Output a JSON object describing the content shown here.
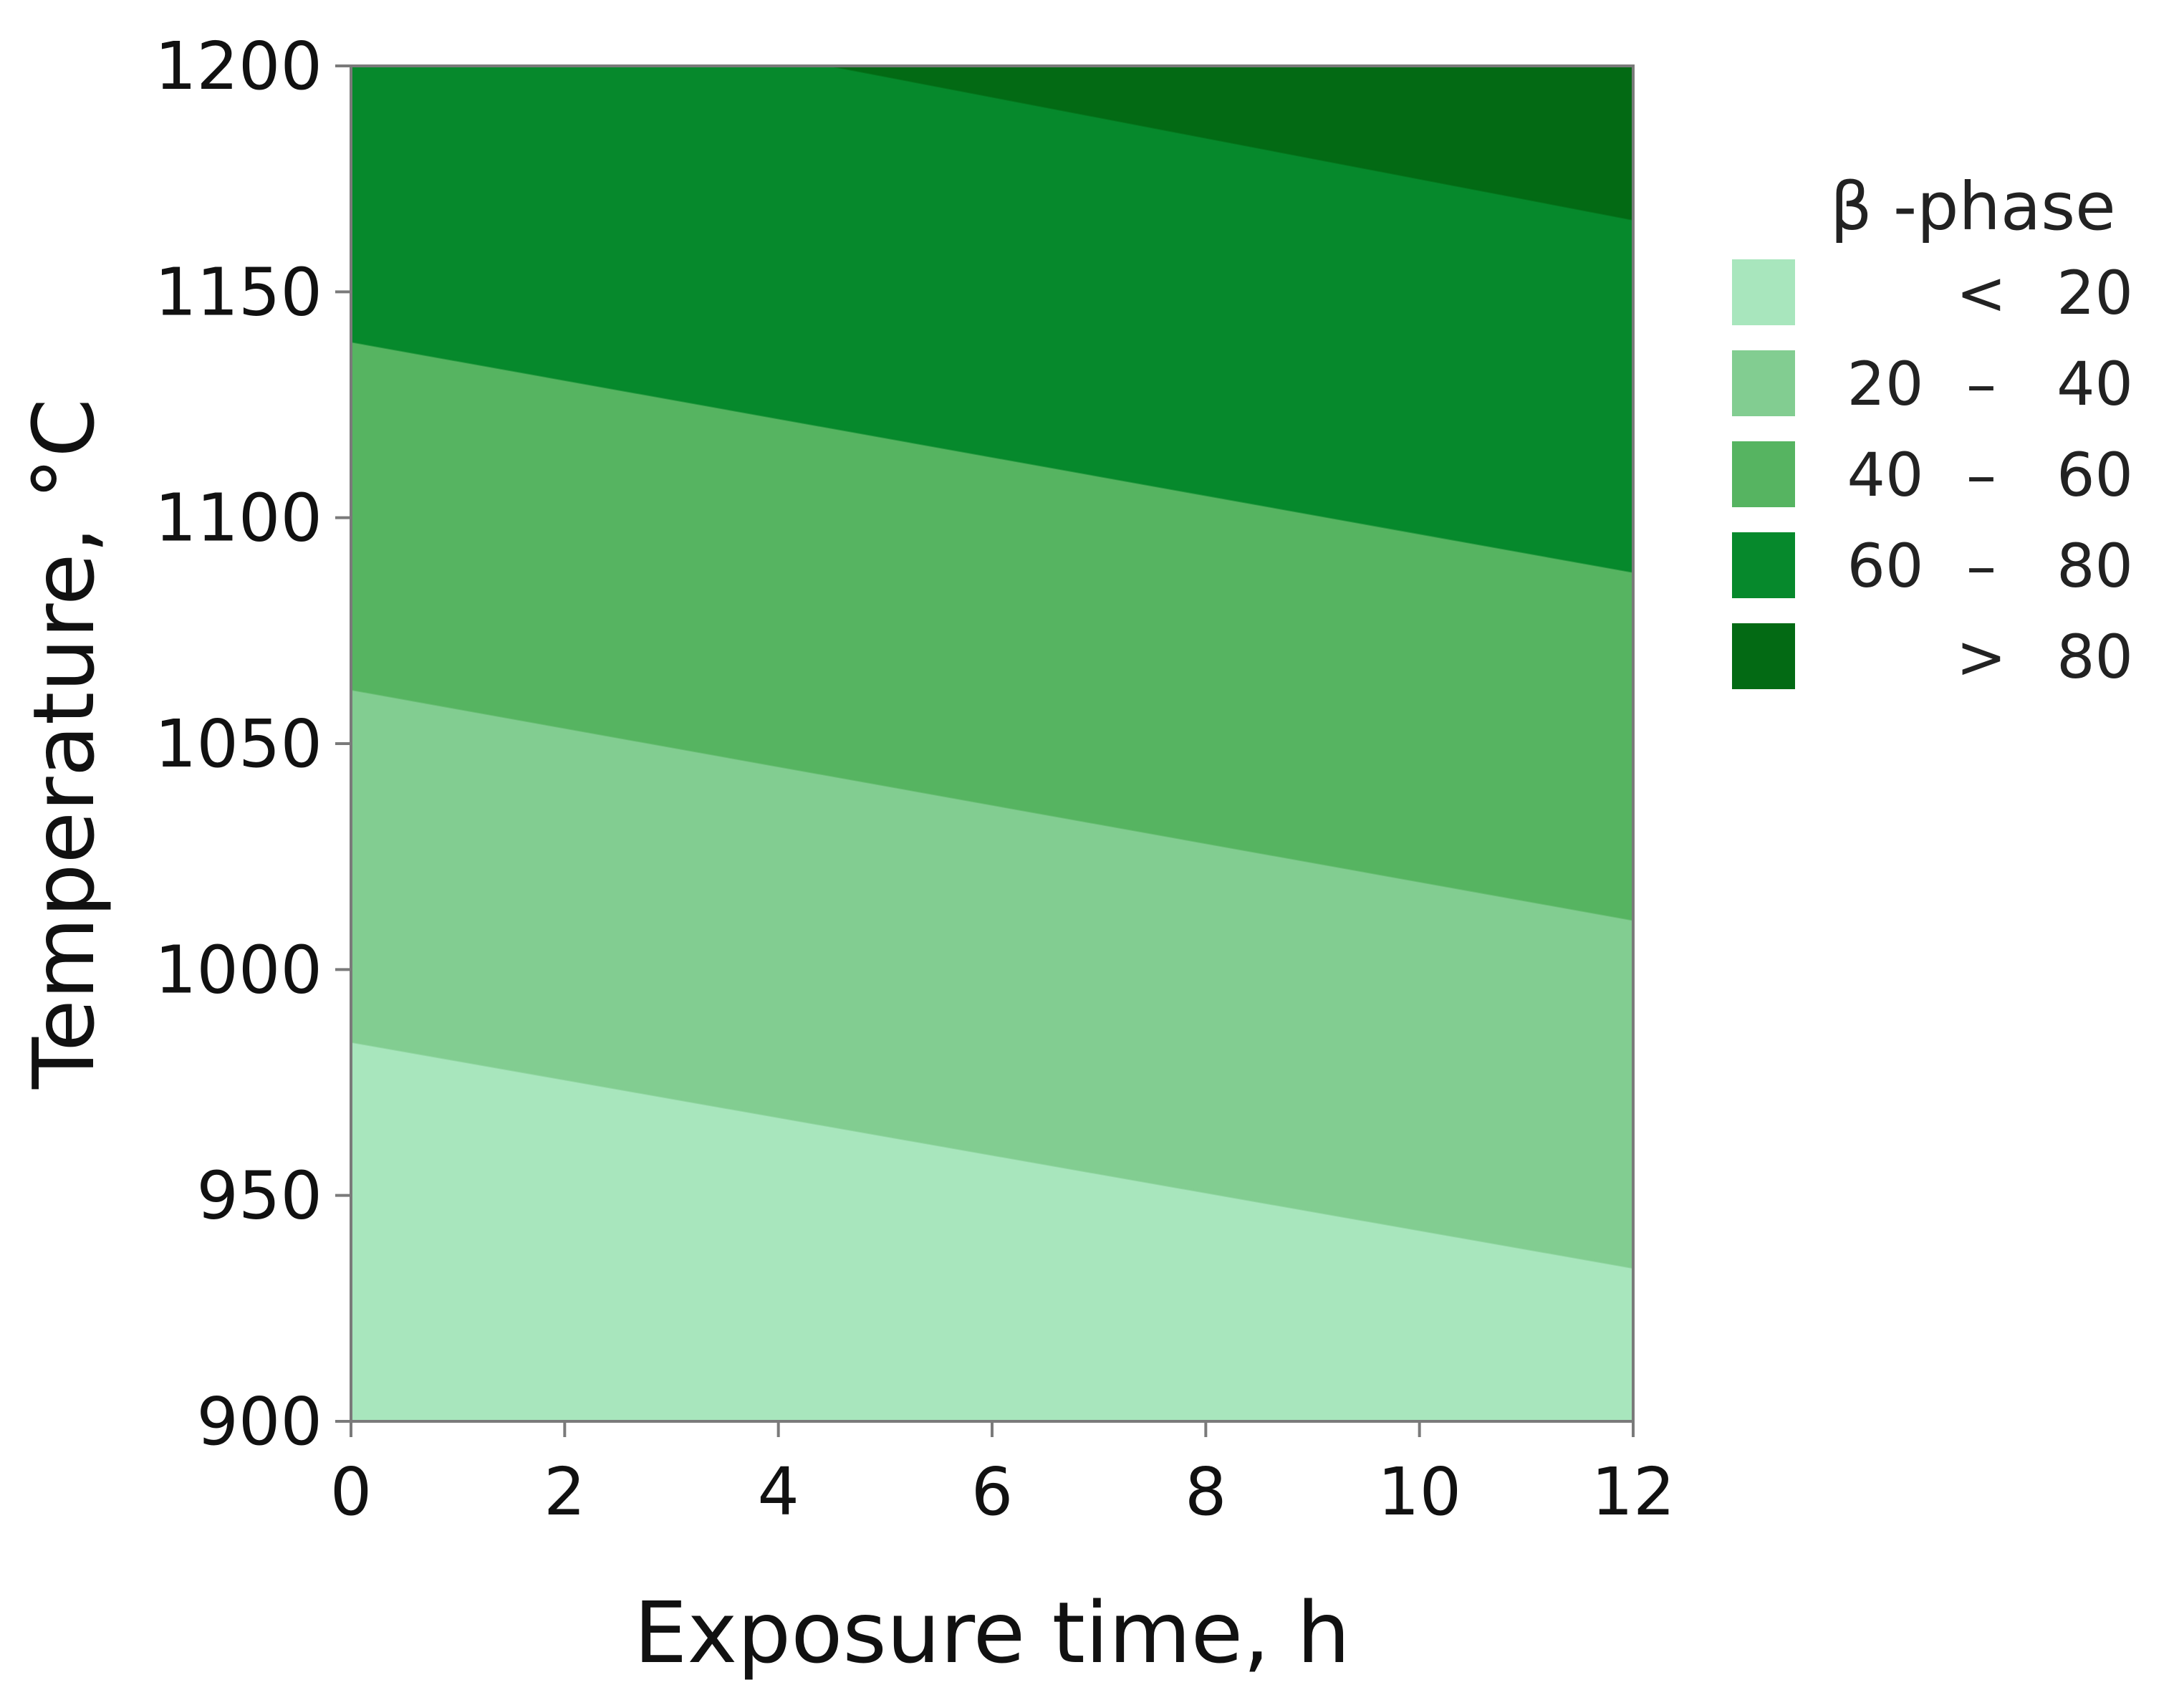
{
  "chart_data": {
    "type": "contour",
    "xlabel": "Exposure time, h",
    "ylabel": "Temperature, °C",
    "xlim": [
      0,
      12
    ],
    "ylim": [
      900,
      1200
    ],
    "x_ticks": [
      0,
      2,
      4,
      6,
      8,
      10,
      12
    ],
    "y_ticks": [
      900,
      950,
      1000,
      1050,
      1100,
      1150,
      1200
    ],
    "grid": false,
    "legend": {
      "title": "β -phase",
      "placement": "right",
      "entries": [
        {
          "low": "",
          "sep": "<",
          "high": "20",
          "color": "#a8e6bd"
        },
        {
          "low": "20",
          "sep": "–",
          "high": "40",
          "color": "#82cd91"
        },
        {
          "low": "40",
          "sep": "–",
          "high": "60",
          "color": "#56b461"
        },
        {
          "low": "60",
          "sep": "–",
          "high": "80",
          "color": "#06892c"
        },
        {
          "low": "",
          "sep": ">",
          "high": "80",
          "color": "#036a14"
        }
      ]
    },
    "contour_lines": [
      {
        "level": 20,
        "x": [
          0,
          12
        ],
        "y": [
          984,
          934
        ]
      },
      {
        "level": 40,
        "x": [
          0,
          12
        ],
        "y": [
          1062,
          1011
        ]
      },
      {
        "level": 60,
        "x": [
          0,
          12
        ],
        "y": [
          1139,
          1088
        ]
      },
      {
        "level": 80,
        "x": [
          4.5,
          12
        ],
        "y": [
          1200,
          1166
        ]
      }
    ],
    "colors": {
      "frame": "#7a7a7a"
    }
  }
}
